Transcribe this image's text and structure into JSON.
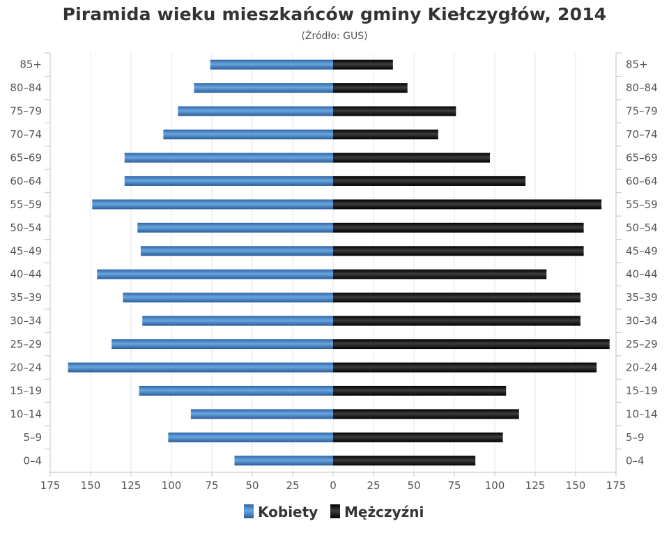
{
  "chart_data": {
    "type": "bar",
    "orientation": "horizontal-population-pyramid",
    "title": "Piramida wieku mieszkańców gminy Kiełczygłów, 2014",
    "subtitle": "(Źródło: GUS)",
    "categories": [
      "0-4",
      "5-9",
      "10-14",
      "15-19",
      "20-24",
      "25-29",
      "30-34",
      "35-39",
      "40-44",
      "45-49",
      "50-54",
      "55-59",
      "60-64",
      "65-69",
      "70-74",
      "75-79",
      "80-84",
      "85+"
    ],
    "category_labels": [
      "0–4",
      "5–9",
      "10–14",
      "15–19",
      "20–24",
      "25–29",
      "30–34",
      "35–39",
      "40–44",
      "45–49",
      "50–54",
      "55–59",
      "60–64",
      "65–69",
      "70–74",
      "75–79",
      "80–84",
      "85+"
    ],
    "series": [
      {
        "name": "Kobiety",
        "side": "left",
        "color": "#3b78b8",
        "values": [
          61,
          102,
          88,
          120,
          164,
          137,
          118,
          130,
          146,
          119,
          121,
          149,
          129,
          129,
          105,
          96,
          86,
          76
        ]
      },
      {
        "name": "Mężczyźni",
        "side": "right",
        "color": "#111111",
        "values": [
          88,
          105,
          115,
          107,
          163,
          171,
          153,
          153,
          132,
          155,
          155,
          166,
          119,
          97,
          65,
          76,
          46,
          37
        ]
      }
    ],
    "x_ticks": [
      "175",
      "150",
      "125",
      "100",
      "75",
      "50",
      "25",
      "0",
      "25",
      "50",
      "75",
      "100",
      "125",
      "150",
      "175"
    ],
    "xlim": [
      -175,
      175
    ],
    "grid": true,
    "legend_position": "bottom-center",
    "legend": [
      "Kobiety",
      "Mężczyźni"
    ]
  }
}
